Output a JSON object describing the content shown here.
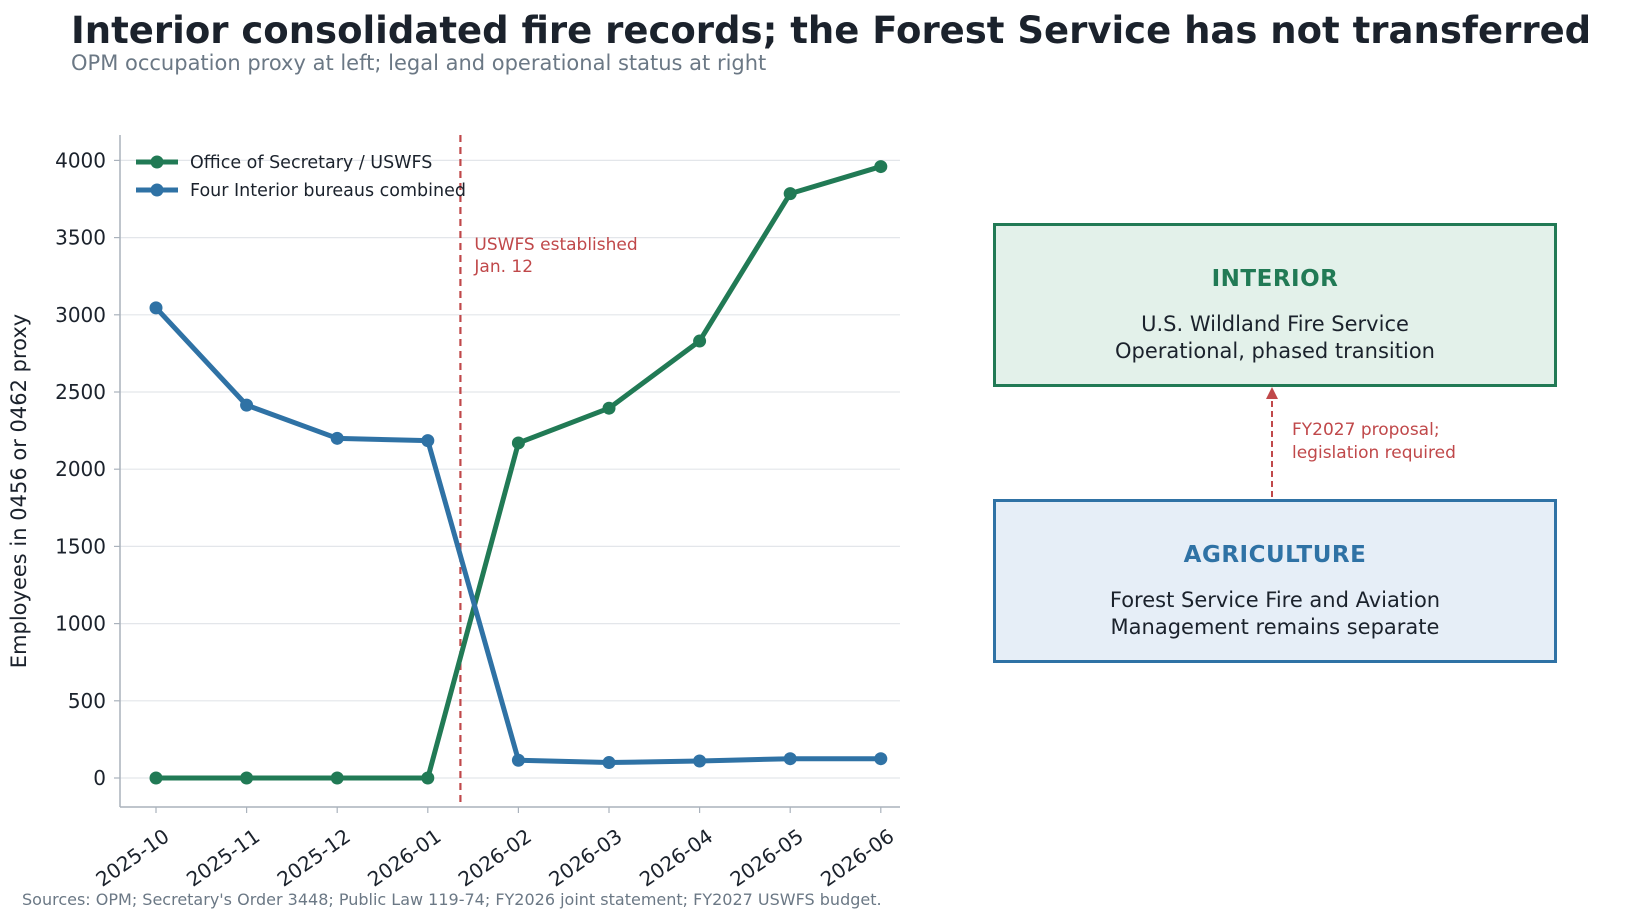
{
  "title": "Interior consolidated fire records; the Forest Service has not transferred",
  "subtitle": "OPM occupation proxy at left; legal and operational status at right",
  "chart_data": {
    "type": "line",
    "categories": [
      "2025-10",
      "2025-11",
      "2025-12",
      "2026-01",
      "2026-02",
      "2026-03",
      "2026-04",
      "2026-05",
      "2026-06"
    ],
    "series": [
      {
        "name": "Office of Secretary / USWFS",
        "color": "#217a55",
        "values": [
          0,
          0,
          0,
          0,
          2170,
          2395,
          2830,
          3785,
          3960
        ]
      },
      {
        "name": "Four Interior bureaus combined",
        "color": "#2f72a5",
        "values": [
          3045,
          2415,
          2200,
          2185,
          115,
          100,
          110,
          125,
          125
        ]
      }
    ],
    "ylabel": "Employees in 0456 or 0462 proxy",
    "xlabel": "",
    "ylim": [
      -180,
      4160
    ],
    "yticks": [
      0,
      500,
      1000,
      1500,
      2000,
      2500,
      3000,
      3500,
      4000
    ],
    "grid": "horizontal",
    "legend": "top-left",
    "event": {
      "category_index": 3.36,
      "color": "#c0484a",
      "label": [
        "USWFS established",
        "Jan. 12"
      ]
    }
  },
  "status_panel": {
    "interior": {
      "title": "INTERIOR",
      "line1": "U.S. Wildland Fire Service",
      "line2": "Operational, phased transition"
    },
    "agriculture": {
      "title": "AGRICULTURE",
      "line1": "Forest Service Fire and Aviation",
      "line2": "Management remains separate"
    },
    "proposal": {
      "line1": "FY2027 proposal;",
      "line2": "legislation required",
      "color": "#c0484a"
    }
  },
  "sources": "Sources: OPM; Secretary's Order 3448; Public Law 119-74; FY2026 joint statement; FY2027 USWFS budget."
}
